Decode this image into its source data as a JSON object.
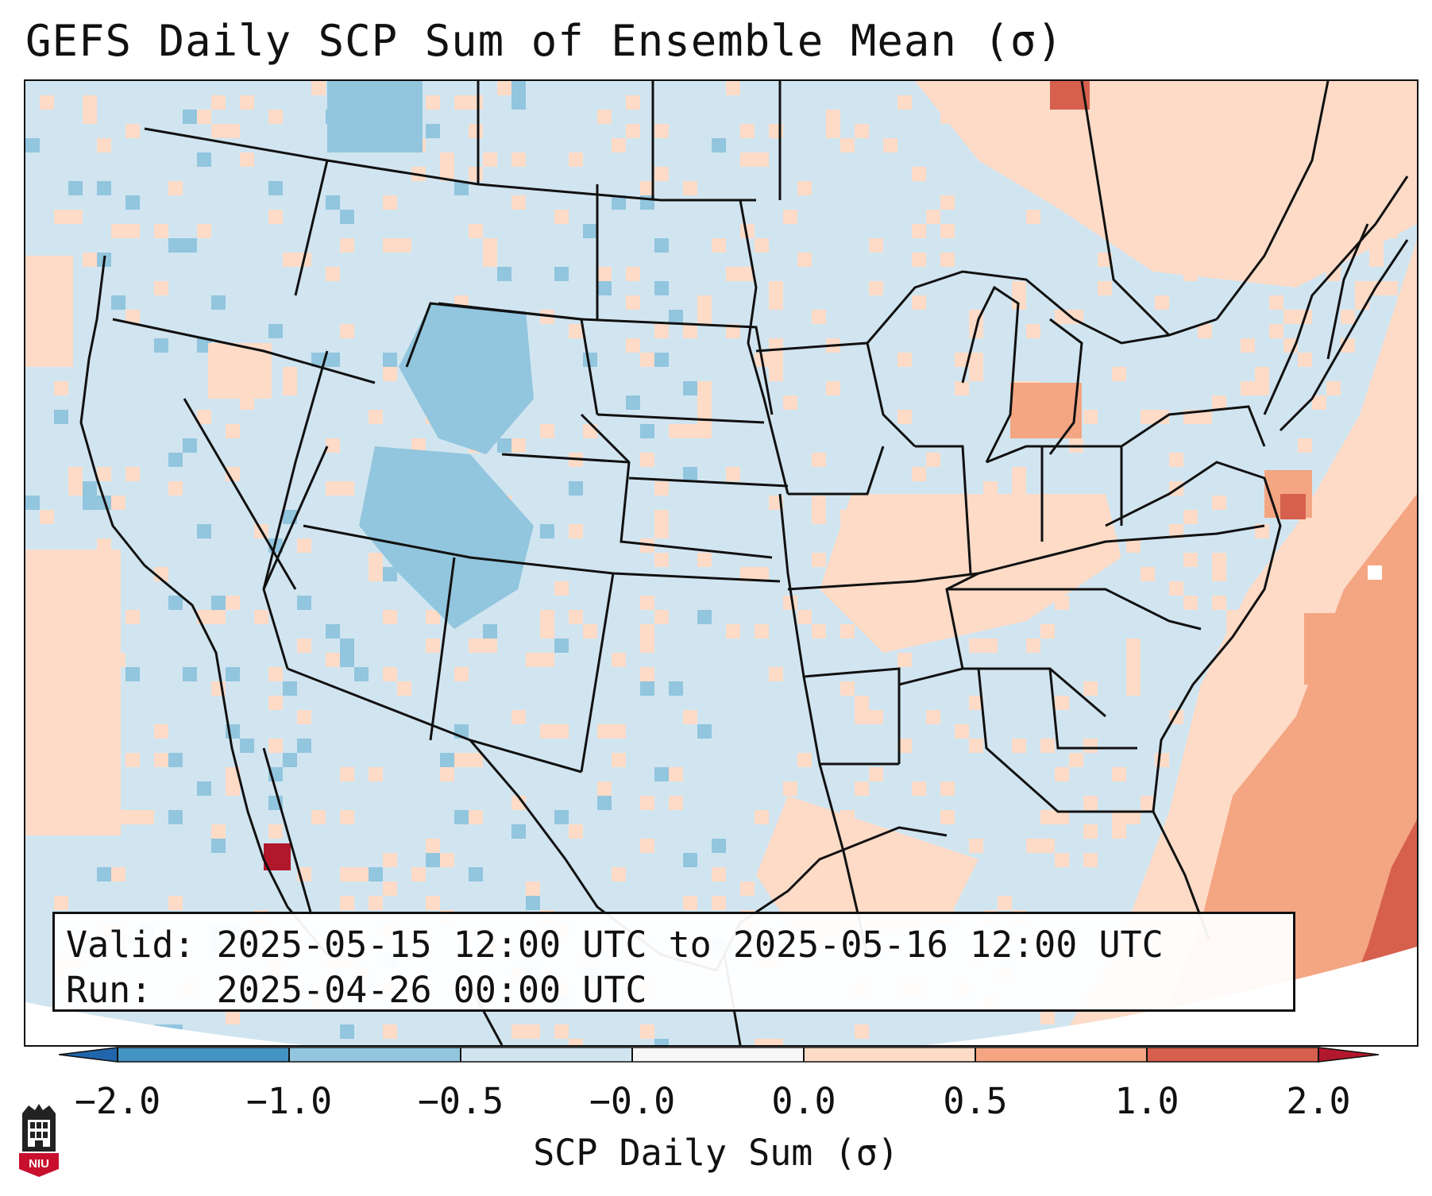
{
  "title": "GEFS Daily SCP Sum of Ensemble Mean (σ)",
  "info": {
    "valid_label": "Valid:",
    "valid_value": "2025-05-15 12:00 UTC to 2025-05-16 12:00 UTC",
    "run_label": "Run:",
    "run_value": "2025-04-26 00:00 UTC"
  },
  "colorbar": {
    "label": "SCP Daily Sum (σ)",
    "ticks": [
      "−2.0",
      "−1.0",
      "−0.5",
      "−0.0",
      "0.0",
      "0.5",
      "1.0",
      "2.0"
    ],
    "colors": [
      "#2166ac",
      "#4393c3",
      "#92c5de",
      "#d1e5f0",
      "#f7f7f7",
      "#fddbc7",
      "#f4a582",
      "#d6604d",
      "#b2182b"
    ]
  },
  "logo_text": "NIU"
}
